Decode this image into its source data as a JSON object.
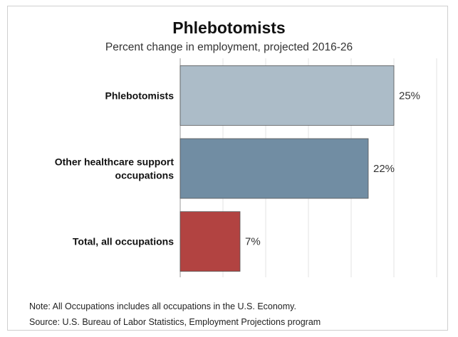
{
  "chart_data": {
    "type": "bar",
    "orientation": "horizontal",
    "title": "Phlebotomists",
    "subtitle": "Percent change in employment, projected 2016-26",
    "categories": [
      [
        "Phlebotomists"
      ],
      [
        "Other healthcare support",
        "occupations"
      ],
      [
        "Total, all occupations"
      ]
    ],
    "values": [
      25,
      22,
      7
    ],
    "value_labels": [
      "25%",
      "22%",
      "7%"
    ],
    "colors": [
      "#acbcc8",
      "#718da3",
      "#b24341"
    ],
    "xlim": [
      0,
      30
    ],
    "grid": true
  },
  "notes": {
    "note": "Note: All Occupations includes all occupations in the U.S. Economy.",
    "source": "Source: U.S. Bureau of Labor Statistics, Employment Projections program"
  }
}
